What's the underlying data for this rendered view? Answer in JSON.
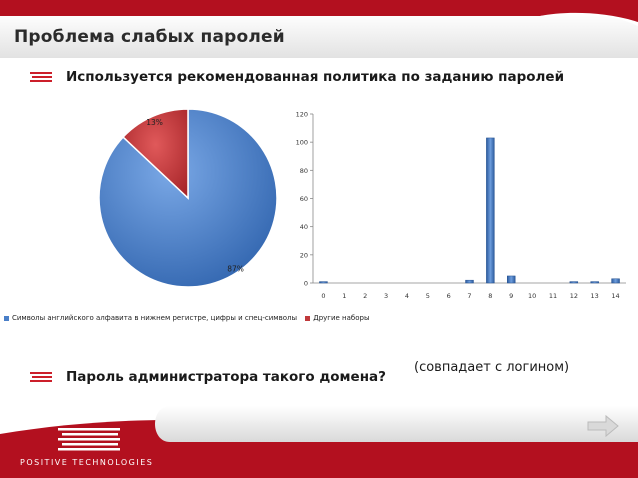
{
  "slide": {
    "title": "Проблема слабых паролей",
    "bullet1": "Используется рекомендованная политика по заданию паролей",
    "bullet2": "Пароль администратора такого домена?",
    "side_note": "(совпадает с логином)",
    "logo_text": "POSITIVE TECHNOLOGIES"
  },
  "colors": {
    "accent_red": "#c8102e",
    "blue": "#4a7fc8",
    "red": "#c0393b"
  },
  "icons": {
    "bullet": "bullet-lines-icon",
    "next": "arrow-right-icon",
    "logo": "positive-technologies-logo-icon"
  },
  "chart_data": [
    {
      "type": "pie",
      "categories": [
        "Символы английского алфавита в нижнем регистре, цифры и спец-символы",
        "Другие наборы"
      ],
      "values": [
        87,
        13
      ],
      "labels": [
        "87%",
        "13%"
      ],
      "colors": [
        "#4a7fc8",
        "#c0393b"
      ],
      "legend": [
        "Символы английского алфавита в нижнем регистре, цифры и спец-символы",
        "Другие наборы"
      ],
      "legend_position": "bottom"
    },
    {
      "type": "bar",
      "categories": [
        "0",
        "1",
        "2",
        "3",
        "4",
        "5",
        "6",
        "7",
        "8",
        "9",
        "10",
        "11",
        "12",
        "13",
        "14"
      ],
      "values": [
        1,
        0,
        0,
        0,
        0,
        0,
        0,
        2,
        103,
        5,
        0,
        0,
        1,
        1,
        3
      ],
      "ylim": [
        0,
        120
      ],
      "yticks": [
        0,
        20,
        40,
        60,
        80,
        100,
        120
      ],
      "grid": false,
      "color": "#4a7fc8"
    }
  ]
}
